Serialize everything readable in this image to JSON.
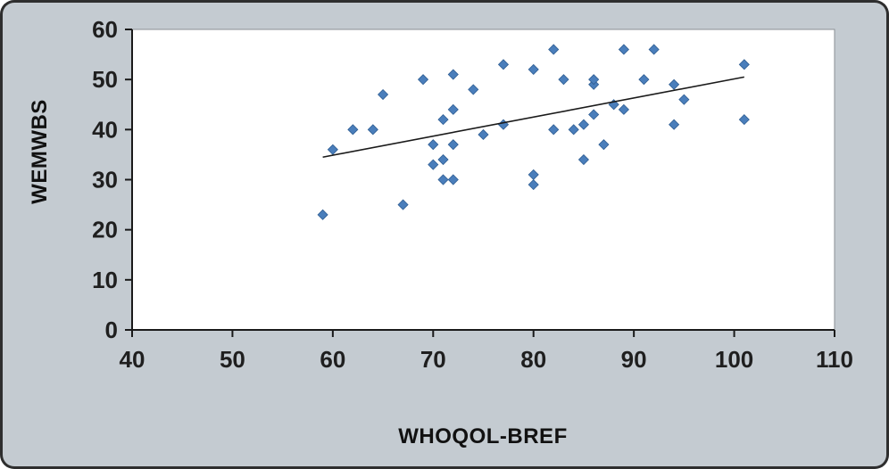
{
  "frame": {
    "background_color": "#c4cbd1",
    "border_color": "#2e2e2e"
  },
  "chart_data": {
    "type": "scatter",
    "title": "",
    "xlabel": "WHOQOL-BREF",
    "ylabel": "WEMWBS",
    "xlim": [
      40,
      110
    ],
    "ylim": [
      0,
      60
    ],
    "xticks": [
      40,
      50,
      60,
      70,
      80,
      90,
      100,
      110
    ],
    "yticks": [
      0,
      10,
      20,
      30,
      40,
      50,
      60
    ],
    "grid": false,
    "legend_position": "none",
    "plot_background": "#ffffff",
    "marker": {
      "shape": "diamond",
      "color": "#4a7ebb",
      "edge_color": "#2f5e93",
      "size": 11
    },
    "points": [
      [
        59,
        23
      ],
      [
        60,
        36
      ],
      [
        62,
        40
      ],
      [
        64,
        40
      ],
      [
        65,
        47
      ],
      [
        67,
        25
      ],
      [
        69,
        50
      ],
      [
        70,
        33
      ],
      [
        70,
        37
      ],
      [
        71,
        30
      ],
      [
        71,
        34
      ],
      [
        71,
        42
      ],
      [
        72,
        30
      ],
      [
        72,
        37
      ],
      [
        72,
        44
      ],
      [
        72,
        51
      ],
      [
        74,
        48
      ],
      [
        75,
        39
      ],
      [
        77,
        41
      ],
      [
        77,
        53
      ],
      [
        80,
        29
      ],
      [
        80,
        31
      ],
      [
        80,
        52
      ],
      [
        82,
        40
      ],
      [
        82,
        56
      ],
      [
        83,
        50
      ],
      [
        84,
        40
      ],
      [
        85,
        34
      ],
      [
        85,
        41
      ],
      [
        86,
        43
      ],
      [
        86,
        49
      ],
      [
        86,
        50
      ],
      [
        87,
        37
      ],
      [
        88,
        45
      ],
      [
        89,
        44
      ],
      [
        89,
        56
      ],
      [
        91,
        50
      ],
      [
        92,
        56
      ],
      [
        94,
        41
      ],
      [
        94,
        49
      ],
      [
        95,
        46
      ],
      [
        101,
        42
      ],
      [
        101,
        53
      ]
    ],
    "trendline": {
      "x1": 59,
      "y1": 34.5,
      "x2": 101,
      "y2": 50.5,
      "color": "#1a1a1a"
    }
  }
}
